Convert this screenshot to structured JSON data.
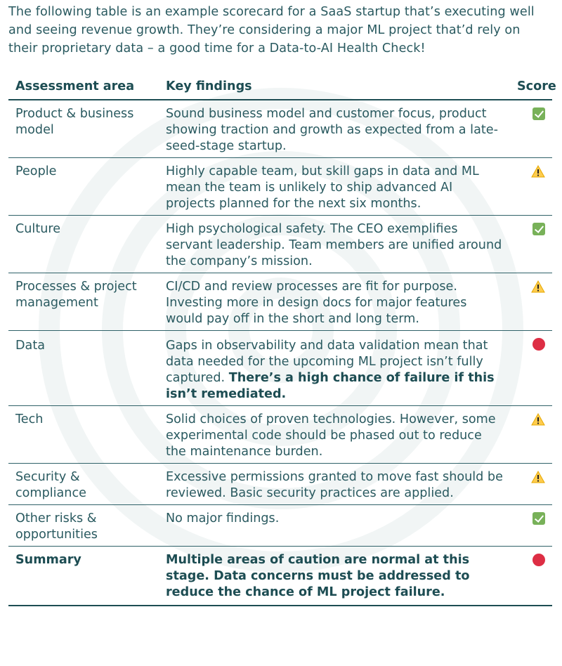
{
  "intro": "The following table is an example scorecard for a SaaS startup that’s executing well and seeing revenue growth. They’re considering a major ML project that’d rely on their proprietary data – a good time for a Data-to-AI Health Check!",
  "table": {
    "headers": {
      "area": "Assessment area",
      "findings": "Key findings",
      "score": "Score"
    },
    "rows": [
      {
        "area": "Product & business model",
        "findings": "Sound business model and customer focus, product showing traction and growth as expected from a late-seed-stage startup.",
        "findings_bold": "",
        "score_icon": "check-icon"
      },
      {
        "area": "People",
        "findings": "Highly capable team, but skill gaps in data and ML mean the team is unlikely to ship advanced AI projects planned for the next six months.",
        "findings_bold": "",
        "score_icon": "warning-icon"
      },
      {
        "area": "Culture",
        "findings": "High psychological safety. The CEO exemplifies servant leadership. Team members are unified around the company’s mission.",
        "findings_bold": "",
        "score_icon": "check-icon"
      },
      {
        "area": "Processes & project management",
        "findings": "CI/CD and review processes are fit for purpose. Investing more in design docs for major features would pay off in the short and long term.",
        "findings_bold": "",
        "score_icon": "warning-icon"
      },
      {
        "area": "Data",
        "findings": "Gaps in observability and data validation mean that data needed for the upcoming ML project isn’t fully captured. ",
        "findings_bold": "There’s a high chance of failure if this isn’t remediated.",
        "score_icon": "red-circle-icon"
      },
      {
        "area": "Tech",
        "findings": "Solid choices of proven technologies. However, some experimental code should be phased out to reduce the maintenance burden.",
        "findings_bold": "",
        "score_icon": "warning-icon"
      },
      {
        "area": "Security & compliance",
        "findings": "Excessive permissions granted to move fast should be reviewed. Basic security practices are applied.",
        "findings_bold": "",
        "score_icon": "warning-icon"
      },
      {
        "area": "Other risks & opportunities",
        "findings": "No major findings.",
        "findings_bold": "",
        "score_icon": "check-icon"
      }
    ],
    "summary": {
      "area": "Summary",
      "findings": "Multiple areas of caution are normal at this stage. Data concerns must be addressed to reduce the chance of ML project failure.",
      "score_icon": "red-circle-icon"
    }
  },
  "colors": {
    "text": "#2a5a60",
    "heading": "#1d4d53",
    "check": "#78b159",
    "warning": "#ffcc4d",
    "stop": "#dd2e44"
  }
}
